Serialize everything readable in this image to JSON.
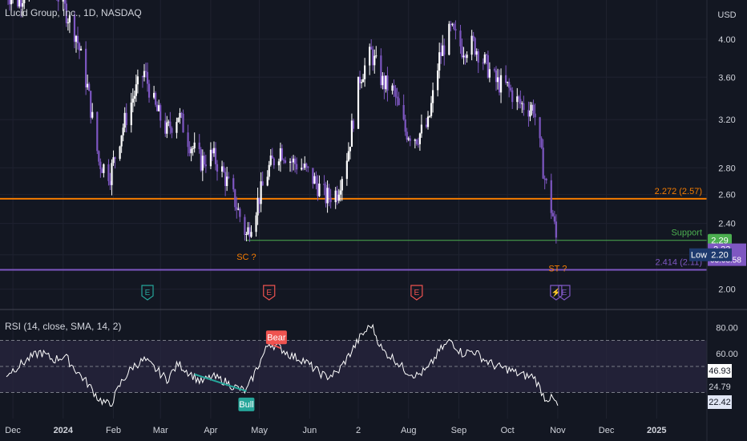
{
  "header": {
    "symbol": "Lucid Group, Inc., 1D, NASDAQ"
  },
  "colors": {
    "background": "#131722",
    "grid": "#1f2230",
    "text": "#d1d4dc",
    "candle": "#7e57c2",
    "candle_up": "#ffffff",
    "orange": "#f57c00",
    "purple": "#7e57c2",
    "support": "#4caf50",
    "low_badge": "#1e3a6e",
    "rsi_line": "#ffffff",
    "rsi_band": "#2a2640",
    "bear": "#ef5350",
    "bull": "#26a69a",
    "price_badge": "#7e57c2"
  },
  "chart_data": [
    {
      "type": "candlestick",
      "title": "Lucid Group, Inc., 1D, NASDAQ",
      "currency": "USD",
      "y_scale": "log",
      "ylim": [
        1.95,
        4.4
      ],
      "y_ticks": [
        4.0,
        3.6,
        3.2,
        2.8,
        2.6,
        2.4,
        2.2,
        2.0
      ],
      "y_tick_labels": [
        "4.00",
        "3.60",
        "3.20",
        "2.80",
        "2.60",
        "2.40",
        "2.20",
        "2.00"
      ],
      "xlim": [
        "2023-11-27",
        "2025-02-01"
      ],
      "x_ticks": [
        {
          "date": "2023-12-01",
          "label": "Dec"
        },
        {
          "date": "2024-01-01",
          "label": "2024"
        },
        {
          "date": "2024-02-01",
          "label": "Feb"
        },
        {
          "date": "2024-03-01",
          "label": "Mar"
        },
        {
          "date": "2024-04-01",
          "label": "Apr"
        },
        {
          "date": "2024-05-01",
          "label": "May"
        },
        {
          "date": "2024-06-01",
          "label": "Jun"
        },
        {
          "date": "2024-07-01",
          "label": "2"
        },
        {
          "date": "2024-08-01",
          "label": "Aug"
        },
        {
          "date": "2024-09-01",
          "label": "Sep"
        },
        {
          "date": "2024-10-01",
          "label": "Oct"
        },
        {
          "date": "2024-11-01",
          "label": "Nov"
        },
        {
          "date": "2024-12-01",
          "label": "Dec"
        },
        {
          "date": "2025-01-01",
          "label": "2025"
        }
      ],
      "close_series": [
        {
          "date": "2023-11-27",
          "close": 4.55
        },
        {
          "date": "2023-12-04",
          "close": 4.45
        },
        {
          "date": "2023-12-11",
          "close": 4.62
        },
        {
          "date": "2023-12-18",
          "close": 4.85
        },
        {
          "date": "2023-12-26",
          "close": 4.62
        },
        {
          "date": "2024-01-02",
          "close": 4.35
        },
        {
          "date": "2024-01-09",
          "close": 4.05
        },
        {
          "date": "2024-01-16",
          "close": 3.5
        },
        {
          "date": "2024-01-23",
          "close": 2.85
        },
        {
          "date": "2024-01-30",
          "close": 2.75
        },
        {
          "date": "2024-02-06",
          "close": 3.1
        },
        {
          "date": "2024-02-13",
          "close": 3.4
        },
        {
          "date": "2024-02-20",
          "close": 3.65
        },
        {
          "date": "2024-02-27",
          "close": 3.3
        },
        {
          "date": "2024-03-05",
          "close": 3.1
        },
        {
          "date": "2024-03-12",
          "close": 3.25
        },
        {
          "date": "2024-03-19",
          "close": 3.0
        },
        {
          "date": "2024-03-26",
          "close": 2.85
        },
        {
          "date": "2024-04-02",
          "close": 2.9
        },
        {
          "date": "2024-04-09",
          "close": 2.75
        },
        {
          "date": "2024-04-16",
          "close": 2.55
        },
        {
          "date": "2024-04-23",
          "close": 2.32
        },
        {
          "date": "2024-04-30",
          "close": 2.55
        },
        {
          "date": "2024-05-07",
          "close": 2.8
        },
        {
          "date": "2024-05-14",
          "close": 2.95
        },
        {
          "date": "2024-05-21",
          "close": 2.85
        },
        {
          "date": "2024-05-28",
          "close": 2.8
        },
        {
          "date": "2024-06-04",
          "close": 2.7
        },
        {
          "date": "2024-06-11",
          "close": 2.58
        },
        {
          "date": "2024-06-18",
          "close": 2.62
        },
        {
          "date": "2024-06-25",
          "close": 2.95
        },
        {
          "date": "2024-07-02",
          "close": 3.6
        },
        {
          "date": "2024-07-09",
          "close": 3.85
        },
        {
          "date": "2024-07-16",
          "close": 3.55
        },
        {
          "date": "2024-07-23",
          "close": 3.45
        },
        {
          "date": "2024-07-30",
          "close": 3.1
        },
        {
          "date": "2024-08-06",
          "close": 3.05
        },
        {
          "date": "2024-08-13",
          "close": 3.15
        },
        {
          "date": "2024-08-20",
          "close": 3.8
        },
        {
          "date": "2024-08-27",
          "close": 4.1
        },
        {
          "date": "2024-09-03",
          "close": 3.9
        },
        {
          "date": "2024-09-10",
          "close": 3.95
        },
        {
          "date": "2024-09-17",
          "close": 3.75
        },
        {
          "date": "2024-09-24",
          "close": 3.55
        },
        {
          "date": "2024-10-01",
          "close": 3.5
        },
        {
          "date": "2024-10-08",
          "close": 3.35
        },
        {
          "date": "2024-10-15",
          "close": 3.3
        },
        {
          "date": "2024-10-17",
          "close": 3.32
        },
        {
          "date": "2024-10-24",
          "close": 2.72
        },
        {
          "date": "2024-10-29",
          "close": 2.45
        },
        {
          "date": "2024-11-01",
          "close": 2.23
        }
      ],
      "price_levels": [
        {
          "price": 2.57,
          "label": "2.272 (2.57)",
          "color": "orange"
        },
        {
          "price": 2.29,
          "label": "Support",
          "badge": "2.29",
          "color": "support",
          "from": "2024-04-23"
        },
        {
          "price": 2.11,
          "label": "2.414 (2.11)",
          "color": "purple"
        }
      ],
      "current_price": {
        "value": "2.23",
        "countdown": "03:08:58"
      },
      "low_marker": {
        "label": "Low",
        "value": "2.20"
      },
      "annotations": [
        {
          "text": "SC ?",
          "date": "2024-04-23",
          "price": 2.19
        },
        {
          "text": "ST ?",
          "date": "2024-11-01",
          "price": 2.12
        }
      ],
      "event_markers": [
        {
          "type": "earnings",
          "glyph": "E",
          "date": "2024-02-22",
          "color": "#26a69a"
        },
        {
          "type": "earnings",
          "glyph": "E",
          "date": "2024-05-07",
          "color": "#ef5350"
        },
        {
          "type": "earnings",
          "glyph": "E",
          "date": "2024-08-06",
          "color": "#ef5350"
        },
        {
          "type": "dividend-split",
          "glyph": "⚡",
          "date": "2024-10-31",
          "color": "#7e57c2"
        },
        {
          "type": "earnings",
          "glyph": "E",
          "date": "2024-11-05",
          "color": "#7e57c2"
        }
      ]
    },
    {
      "type": "line",
      "title": "RSI (14, close, SMA, 14, 2)",
      "ylim": [
        10,
        90
      ],
      "y_ticks": [
        80,
        60
      ],
      "y_tick_labels": [
        "80.00",
        "60.00"
      ],
      "bands": [
        70,
        30
      ],
      "middle": 50,
      "series": [
        {
          "name": "RSI",
          "points": [
            {
              "date": "2023-11-27",
              "value": 44
            },
            {
              "date": "2023-12-04",
              "value": 50
            },
            {
              "date": "2023-12-11",
              "value": 56
            },
            {
              "date": "2023-12-18",
              "value": 61
            },
            {
              "date": "2023-12-26",
              "value": 55
            },
            {
              "date": "2024-01-02",
              "value": 58
            },
            {
              "date": "2024-01-09",
              "value": 47
            },
            {
              "date": "2024-01-16",
              "value": 37
            },
            {
              "date": "2024-01-23",
              "value": 25
            },
            {
              "date": "2024-01-30",
              "value": 20
            },
            {
              "date": "2024-02-06",
              "value": 38
            },
            {
              "date": "2024-02-13",
              "value": 50
            },
            {
              "date": "2024-02-20",
              "value": 55
            },
            {
              "date": "2024-02-27",
              "value": 48
            },
            {
              "date": "2024-03-05",
              "value": 40
            },
            {
              "date": "2024-03-12",
              "value": 52
            },
            {
              "date": "2024-03-19",
              "value": 45
            },
            {
              "date": "2024-03-26",
              "value": 38
            },
            {
              "date": "2024-04-02",
              "value": 42
            },
            {
              "date": "2024-04-09",
              "value": 39
            },
            {
              "date": "2024-04-16",
              "value": 34
            },
            {
              "date": "2024-04-23",
              "value": 31
            },
            {
              "date": "2024-04-30",
              "value": 50
            },
            {
              "date": "2024-05-07",
              "value": 68
            },
            {
              "date": "2024-05-14",
              "value": 64
            },
            {
              "date": "2024-05-21",
              "value": 58
            },
            {
              "date": "2024-05-28",
              "value": 55
            },
            {
              "date": "2024-06-04",
              "value": 48
            },
            {
              "date": "2024-06-11",
              "value": 42
            },
            {
              "date": "2024-06-18",
              "value": 45
            },
            {
              "date": "2024-06-25",
              "value": 58
            },
            {
              "date": "2024-07-02",
              "value": 72
            },
            {
              "date": "2024-07-09",
              "value": 82
            },
            {
              "date": "2024-07-16",
              "value": 62
            },
            {
              "date": "2024-07-23",
              "value": 56
            },
            {
              "date": "2024-07-30",
              "value": 47
            },
            {
              "date": "2024-08-06",
              "value": 43
            },
            {
              "date": "2024-08-13",
              "value": 48
            },
            {
              "date": "2024-08-20",
              "value": 62
            },
            {
              "date": "2024-08-27",
              "value": 70
            },
            {
              "date": "2024-09-03",
              "value": 60
            },
            {
              "date": "2024-09-10",
              "value": 62
            },
            {
              "date": "2024-09-17",
              "value": 55
            },
            {
              "date": "2024-09-24",
              "value": 50
            },
            {
              "date": "2024-10-01",
              "value": 48
            },
            {
              "date": "2024-10-08",
              "value": 44
            },
            {
              "date": "2024-10-15",
              "value": 42
            },
            {
              "date": "2024-10-17",
              "value": 43
            },
            {
              "date": "2024-10-24",
              "value": 26
            },
            {
              "date": "2024-10-29",
              "value": 25
            },
            {
              "date": "2024-11-01",
              "value": 20
            }
          ]
        }
      ],
      "value_badges": [
        "46.93",
        "24.79",
        "22.42"
      ],
      "divergences": [
        {
          "label": "Bear",
          "from": "2024-05-07",
          "to": "2024-05-14",
          "color": "bear"
        },
        {
          "label": "Bull",
          "from": "2024-03-22",
          "to": "2024-04-23",
          "color": "bull"
        }
      ]
    }
  ]
}
